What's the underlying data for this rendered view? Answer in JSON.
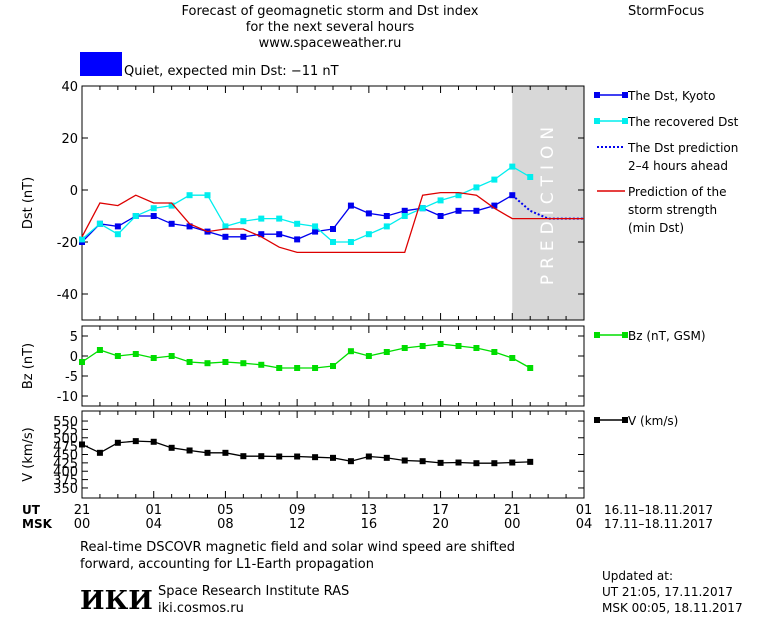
{
  "header": {
    "title_line1": "Forecast of geomagnetic storm and Dst index",
    "title_line2": "for the next several hours",
    "url": "www.spaceweather.ru",
    "brand": "StormFocus"
  },
  "status": {
    "color": "#0000ff",
    "text": "Quiet, expected min Dst: −11 nT"
  },
  "footer": {
    "note_line1": "Real-time DSCOVR magnetic field and solar wind speed are shifted",
    "note_line2": "forward, accounting for L1-Earth propagation",
    "logo_text": "ИКИ",
    "institute": "Space Research Institute RAS",
    "institute_url": "iki.cosmos.ru",
    "updated_label": "Updated at:",
    "updated_ut": "UT   21:05, 17.11.2017",
    "updated_msk": "MSK 00:05, 18.11.2017"
  },
  "chart_data": {
    "type": "line",
    "x_axes": {
      "ut_label": "UT",
      "msk_label": "MSK",
      "ut_ticks": [
        "21",
        "01",
        "05",
        "09",
        "13",
        "17",
        "21",
        "01"
      ],
      "msk_ticks": [
        "00",
        "04",
        "08",
        "12",
        "16",
        "20",
        "00",
        "04"
      ],
      "ut_range": "16.11–18.11.2017",
      "msk_range": "17.11–18.11.2017"
    },
    "x_hours": [
      0,
      28
    ],
    "prediction_region": {
      "from": 24,
      "to": 28,
      "label": "PREDICTION"
    },
    "panels": [
      {
        "id": "dst",
        "ylabel": "Dst (nT)",
        "ylim": [
          -50,
          40
        ],
        "yticks": [
          40,
          20,
          0,
          -20,
          -40
        ],
        "series": [
          {
            "name": "The Dst, Kyoto",
            "color": "#0000ee",
            "style": "line-square",
            "x": [
              0,
              1,
              2,
              3,
              4,
              5,
              6,
              7,
              8,
              9,
              10,
              11,
              12,
              13,
              14,
              15,
              16,
              17,
              18,
              19,
              20,
              21,
              22,
              23,
              24
            ],
            "y": [
              -20,
              -13,
              -14,
              -10,
              -10,
              -13,
              -14,
              -16,
              -18,
              -18,
              -17,
              -17,
              -19,
              -16,
              -15,
              -6,
              -9,
              -10,
              -8,
              -7,
              -10,
              -8,
              -8,
              -6,
              -2
            ]
          },
          {
            "name": "The recovered Dst",
            "color": "#00eeee",
            "style": "line-square",
            "x": [
              0,
              1,
              2,
              3,
              4,
              5,
              6,
              7,
              8,
              9,
              10,
              11,
              12,
              13,
              14,
              15,
              16,
              17,
              18,
              19,
              20,
              21,
              22,
              23,
              24,
              25
            ],
            "y": [
              -19,
              -13,
              -17,
              -10,
              -7,
              -6,
              -2,
              -2,
              -14,
              -12,
              -11,
              -11,
              -13,
              -14,
              -20,
              -20,
              -17,
              -14,
              -10,
              -7,
              -4,
              -2,
              1,
              4,
              9,
              5
            ]
          },
          {
            "name": "The Dst prediction 2–4 hours ahead",
            "color": "#0000ee",
            "style": "dotted",
            "x": [
              24,
              25,
              26,
              28
            ],
            "y": [
              -2,
              -8,
              -11,
              -11
            ]
          },
          {
            "name": "Prediction of the storm strength (min Dst)",
            "color": "#dd0000",
            "style": "line",
            "x": [
              0,
              1,
              2,
              3,
              4,
              5,
              6,
              7,
              8,
              9,
              10,
              11,
              12,
              13,
              14,
              15,
              16,
              17,
              18,
              19,
              20,
              21,
              22,
              23,
              24,
              25,
              26,
              27,
              28
            ],
            "y": [
              -18,
              -5,
              -6,
              -2,
              -5,
              -5,
              -13,
              -16,
              -15,
              -15,
              -18,
              -22,
              -24,
              -24,
              -24,
              -24,
              -24,
              -24,
              -24,
              -2,
              -1,
              -1,
              -2,
              -7,
              -11,
              -11,
              -11,
              -11,
              -11
            ]
          }
        ],
        "legend": [
          {
            "label_lines": [
              "The Dst, Kyoto"
            ],
            "color": "#0000ee",
            "style": "line-square"
          },
          {
            "label_lines": [
              "The recovered Dst"
            ],
            "color": "#00eeee",
            "style": "line-square"
          },
          {
            "label_lines": [
              "The Dst prediction",
              "2–4 hours ahead"
            ],
            "color": "#0000ee",
            "style": "dotted"
          },
          {
            "label_lines": [
              "Prediction of the",
              "storm strength",
              "(min Dst)"
            ],
            "color": "#dd0000",
            "style": "line"
          }
        ]
      },
      {
        "id": "bz",
        "ylabel": "Bz (nT)",
        "ylim": [
          -12.5,
          7.5
        ],
        "yticks": [
          5,
          0,
          -5,
          -10
        ],
        "series": [
          {
            "name": "Bz (nT, GSM)",
            "color": "#00dd00",
            "style": "line-square",
            "x": [
              0,
              1,
              2,
              3,
              4,
              5,
              6,
              7,
              8,
              9,
              10,
              11,
              12,
              13,
              14,
              15,
              16,
              17,
              18,
              19,
              20,
              21,
              22,
              23,
              24,
              25
            ],
            "y": [
              -1.5,
              1.5,
              0,
              0.5,
              -0.5,
              0,
              -1.5,
              -1.8,
              -1.5,
              -1.8,
              -2.2,
              -3,
              -3,
              -3,
              -2.5,
              1.2,
              0,
              1,
              2,
              2.5,
              3,
              2.5,
              2,
              1,
              -0.5,
              -3
            ]
          }
        ],
        "legend": [
          {
            "label_lines": [
              "Bz (nT, GSM)"
            ],
            "color": "#00dd00",
            "style": "line-square"
          }
        ]
      },
      {
        "id": "v",
        "ylabel": "V (km/s)",
        "ylim": [
          320,
          580
        ],
        "yticks": [
          550,
          500,
          450,
          400,
          350
        ],
        "tick_labels": [
          "550",
          "500",
          "450",
          "400",
          "350"
        ],
        "extra_ticks": [
          "525",
          "475",
          "425",
          "375"
        ],
        "series": [
          {
            "name": "V (km/s)",
            "color": "#000000",
            "style": "line-square",
            "x": [
              0,
              1,
              2,
              3,
              4,
              5,
              6,
              7,
              8,
              9,
              10,
              11,
              12,
              13,
              14,
              15,
              16,
              17,
              18,
              19,
              20,
              21,
              22,
              23,
              24,
              25
            ],
            "y": [
              480,
              455,
              485,
              490,
              488,
              470,
              462,
              455,
              455,
              445,
              445,
              444,
              444,
              442,
              440,
              430,
              444,
              440,
              432,
              430,
              425,
              426,
              424,
              424,
              426,
              428
            ]
          }
        ],
        "legend": [
          {
            "label_lines": [
              "V (km/s)"
            ],
            "color": "#000000",
            "style": "line-square"
          }
        ]
      }
    ]
  }
}
